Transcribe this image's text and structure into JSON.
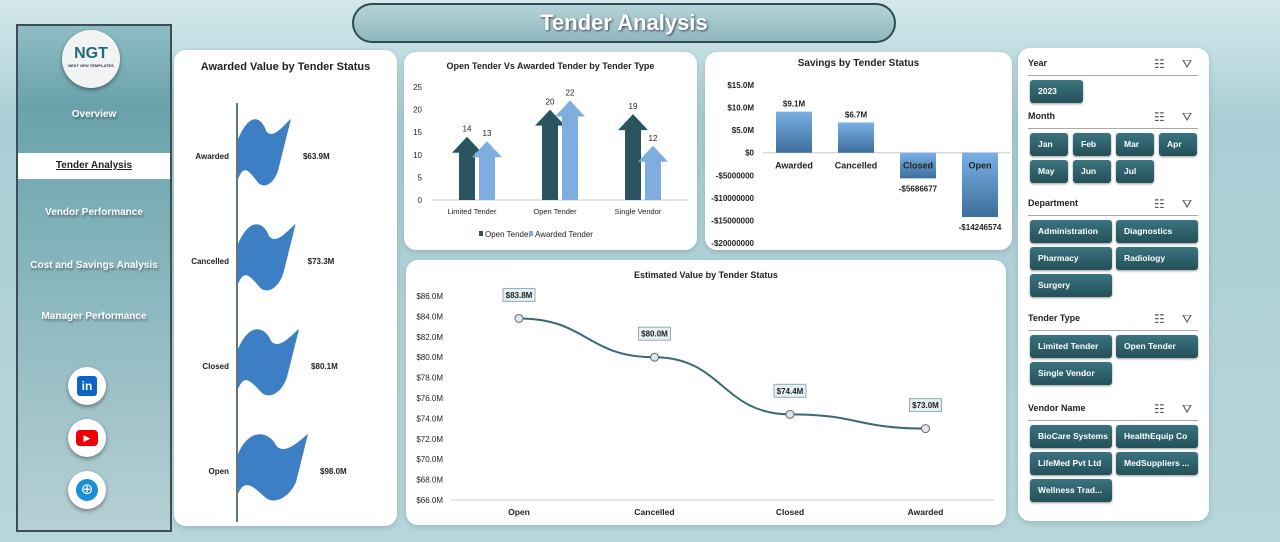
{
  "header": {
    "title": "Tender Analysis"
  },
  "sidebar": {
    "logo_text": "NGT",
    "logo_sub": "NEXT GEN TEMPLATES",
    "items": [
      {
        "label": "Overview"
      },
      {
        "label": "Tender Analysis",
        "active": true
      },
      {
        "label": "Vendor Performance"
      },
      {
        "label": "Cost and Savings Analysis"
      },
      {
        "label": "Manager Performance"
      }
    ],
    "social": [
      "linkedin-icon",
      "youtube-icon",
      "globe-icon"
    ]
  },
  "colors": {
    "accent": "#2f6470",
    "bar_blue": "#3d7fc4",
    "light_blue": "#7eaee0",
    "dark_teal": "#2a5560"
  },
  "chart_data": [
    {
      "type": "bar",
      "title": "Awarded Value by Tender Status",
      "orientation": "horizontal",
      "marker": "flag",
      "categories": [
        "Awarded",
        "Cancelled",
        "Closed",
        "Open"
      ],
      "values": [
        63.9,
        73.3,
        80.1,
        98.0
      ],
      "labels": [
        "$63.9M",
        "$73.3M",
        "$80.1M",
        "$98.0M"
      ]
    },
    {
      "type": "bar",
      "title": "Open Tender Vs Awarded Tender by Tender Type",
      "marker": "arrow",
      "categories": [
        "Limited Tender",
        "Open Tender",
        "Single Vendor"
      ],
      "series": [
        {
          "name": "Open Tender",
          "values": [
            14,
            20,
            19
          ]
        },
        {
          "name": "Awarded Tender",
          "values": [
            13,
            22,
            12
          ]
        }
      ],
      "ylim": [
        0,
        25
      ],
      "yticks": [
        "0",
        "5",
        "10",
        "15",
        "20",
        "25"
      ],
      "legend": "bottom"
    },
    {
      "type": "bar",
      "title": "Savings by Tender Status",
      "categories": [
        "Awarded",
        "Cancelled",
        "Closed",
        "Open"
      ],
      "values": [
        9100000,
        6700000,
        -5686677,
        -14246574
      ],
      "labels": [
        "$9.1M",
        "$6.7M",
        "-$5686677",
        "-$14246574"
      ],
      "ylim": [
        -20000000,
        15000000
      ],
      "yticks": [
        "$15.0M",
        "$10.0M",
        "$5.0M",
        "$0",
        "-$5000000",
        "-$10000000",
        "-$15000000",
        "-$20000000"
      ]
    },
    {
      "type": "line",
      "title": "Estimated Value by Tender Status",
      "categories": [
        "Open",
        "Cancelled",
        "Closed",
        "Awarded"
      ],
      "values": [
        83.8,
        80.0,
        74.4,
        73.0
      ],
      "labels": [
        "$83.8M",
        "$80.0M",
        "$74.4M",
        "$73.0M"
      ],
      "ylim": [
        66,
        86
      ],
      "yticks": [
        "$86.0M",
        "$84.0M",
        "$82.0M",
        "$80.0M",
        "$78.0M",
        "$76.0M",
        "$74.0M",
        "$72.0M",
        "$70.0M",
        "$68.0M",
        "$66.0M"
      ]
    }
  ],
  "filters": [
    {
      "title": "Year",
      "options": [
        "2023"
      ]
    },
    {
      "title": "Month",
      "options": [
        "Jan",
        "Feb",
        "Mar",
        "Apr",
        "May",
        "Jun",
        "Jul"
      ]
    },
    {
      "title": "Department",
      "options": [
        "Administration",
        "Diagnostics",
        "Pharmacy",
        "Radiology",
        "Surgery"
      ]
    },
    {
      "title": "Tender Type",
      "options": [
        "Limited Tender",
        "Open Tender",
        "Single Vendor"
      ]
    },
    {
      "title": "Vendor Name",
      "options": [
        "BioCare Systems",
        "HealthEquip Co",
        "LifeMed Pvt Ltd",
        "MedSuppliers ...",
        "Wellness Trad..."
      ]
    }
  ]
}
